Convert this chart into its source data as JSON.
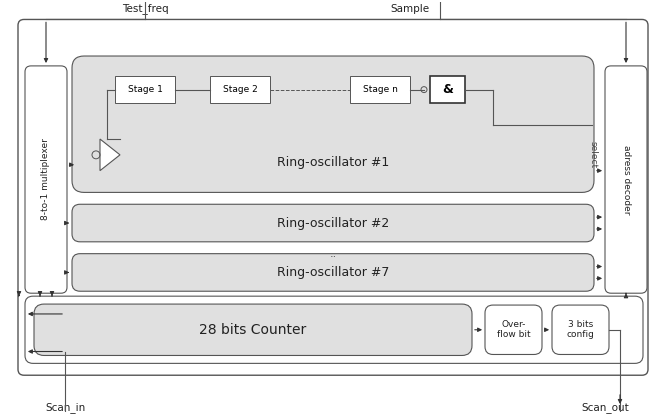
{
  "bg_color": "#ffffff",
  "lc": "#555555",
  "gray_fill": "#e0e0e0",
  "white_fill": "#ffffff",
  "labels": {
    "test_freq": "Test_freq",
    "sample": "Sample",
    "scan_in": "Scan_in",
    "scan_out": "Scan_out",
    "mux": "8-to-1 multiplexer",
    "addr": "adress decoder",
    "select": "select",
    "ro1": "Ring-oscillator #1",
    "ro2": "Ring-oscillator #2",
    "dots": "..",
    "ro7": "Ring-oscillator #7",
    "counter": "28 bits Counter",
    "overflow": "Over-\nflow bit",
    "config": "3 bits\nconfig",
    "stage1": "Stage 1",
    "stage2": "Stage 2",
    "stagen": "Stage n",
    "and_gate": "&"
  }
}
